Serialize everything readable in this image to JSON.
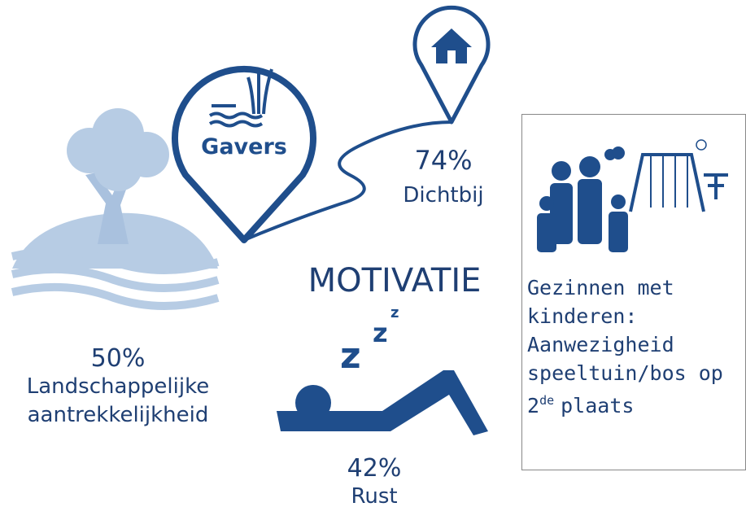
{
  "title": "MOTIVATIE",
  "pin_label": "Gavers",
  "proximity": {
    "value": "74%",
    "label": "Dichtbij"
  },
  "landscape": {
    "value": "50%",
    "lines": [
      "Landschappelijke",
      "aantrekkelijkheid"
    ]
  },
  "rest": {
    "value": "42%",
    "label": "Rust"
  },
  "families": {
    "lines": [
      "Gezinnen met",
      "kinderen:",
      "Aanwezigheid",
      "speeltuin/bos op"
    ],
    "rank": "2",
    "rank_suffix": "de",
    "rank_rest": "plaats"
  }
}
